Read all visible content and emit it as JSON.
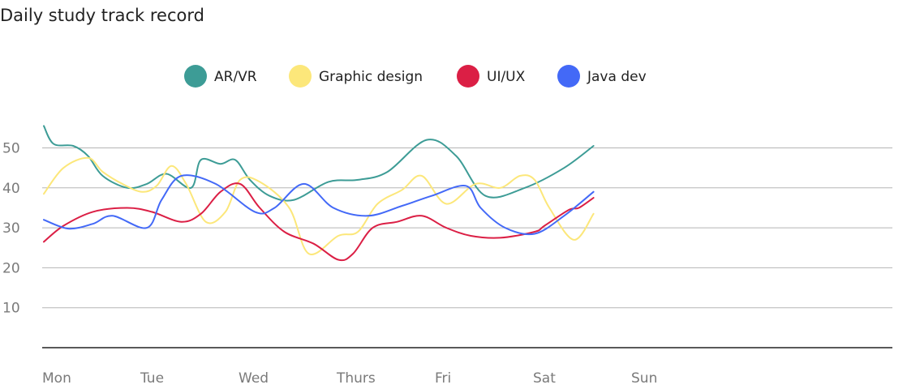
{
  "chart_data": {
    "type": "line",
    "title": "Daily study track record",
    "xlabel": "",
    "ylabel": "",
    "categories": [
      "Mon",
      "Tue",
      "Wed",
      "Thurs",
      "Fri",
      "Sat",
      "Sun"
    ],
    "yticks": [
      10,
      20,
      30,
      40,
      50
    ],
    "ylim": [
      0,
      56
    ],
    "grid": true,
    "legend": "top-center",
    "series": [
      {
        "name": "AR/VR",
        "color": "#3d9c96",
        "x": [
          0.0,
          0.1,
          0.3,
          0.45,
          0.6,
          0.85,
          1.05,
          1.25,
          1.5,
          1.6,
          1.8,
          1.95,
          2.1,
          2.3,
          2.55,
          2.9,
          3.2,
          3.5,
          3.9,
          4.2,
          4.5,
          4.9,
          5.3,
          5.6
        ],
        "y": [
          55.5,
          51,
          50.5,
          48,
          43,
          40,
          41,
          43.5,
          40,
          47,
          46,
          47,
          42,
          38,
          37,
          41.5,
          42,
          44,
          52,
          48,
          38,
          40,
          45,
          50.5
        ]
      },
      {
        "name": "Graphic design",
        "color": "#fce77a",
        "x": [
          0.0,
          0.2,
          0.45,
          0.6,
          0.8,
          1.0,
          1.15,
          1.3,
          1.45,
          1.65,
          1.85,
          2.0,
          2.2,
          2.5,
          2.7,
          3.0,
          3.2,
          3.4,
          3.65,
          3.85,
          4.1,
          4.4,
          4.65,
          4.85,
          5.0,
          5.15,
          5.4,
          5.6
        ],
        "y": [
          38.5,
          45,
          47.5,
          44,
          41,
          39,
          40.5,
          45.5,
          41,
          31.5,
          34,
          42,
          41.5,
          35,
          23.5,
          28,
          29,
          36,
          39.5,
          43,
          36,
          41,
          40,
          43,
          42,
          35,
          27,
          33.5
        ]
      },
      {
        "name": "UI/UX",
        "color": "#db1f45",
        "x": [
          0.0,
          0.2,
          0.5,
          0.85,
          1.1,
          1.4,
          1.6,
          1.8,
          2.0,
          2.2,
          2.45,
          2.75,
          3.0,
          3.15,
          3.35,
          3.6,
          3.85,
          4.1,
          4.35,
          4.65,
          5.0,
          5.1,
          5.35,
          5.45,
          5.6
        ],
        "y": [
          26.5,
          30.5,
          34,
          35,
          34,
          31.5,
          33.5,
          39,
          41,
          35,
          29,
          26,
          22,
          23.5,
          30,
          31.5,
          33,
          30,
          28,
          27.5,
          29,
          30.5,
          34.5,
          35,
          37.5
        ]
      },
      {
        "name": "Java dev",
        "color": "#4369f7",
        "x": [
          0.0,
          0.25,
          0.5,
          0.7,
          1.05,
          1.2,
          1.4,
          1.75,
          2.15,
          2.35,
          2.65,
          2.95,
          3.3,
          3.65,
          3.95,
          4.3,
          4.45,
          4.7,
          5.0,
          5.3,
          5.6
        ],
        "y": [
          32,
          29.8,
          31,
          33,
          30,
          37,
          43,
          41,
          34,
          35,
          41,
          35,
          33,
          35.5,
          38,
          40.5,
          35,
          30,
          28.5,
          33,
          39
        ]
      }
    ]
  }
}
